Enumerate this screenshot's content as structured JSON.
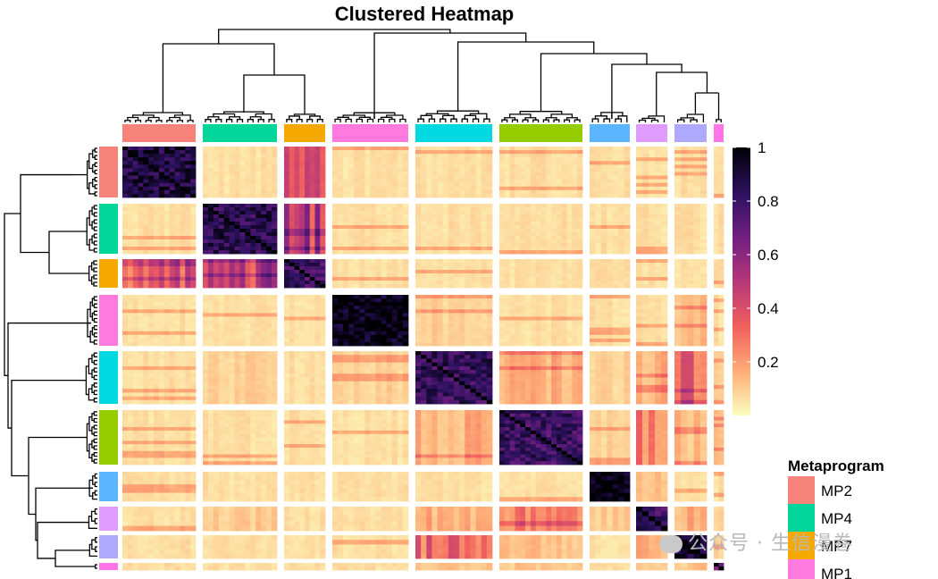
{
  "chart_data": {
    "type": "heatmap",
    "title": "Clustered Heatmap",
    "colorbar": {
      "min": 0,
      "max": 1,
      "ticks": [
        1,
        0.8,
        0.6,
        0.4,
        0.2
      ],
      "tick_labels": [
        "1",
        "0.8",
        "0.6",
        "0.4",
        "0.2"
      ],
      "colors": [
        "#fcfdbf",
        "#feb078",
        "#f1605d",
        "#b73779",
        "#721f81",
        "#2c115f",
        "#000004"
      ]
    },
    "legend": {
      "title": "Metaprogram",
      "placement": "bottom-right",
      "entries": [
        {
          "label": "MP2",
          "color": "#F8837B"
        },
        {
          "label": "MP4",
          "color": "#00D69A"
        },
        {
          "label": "MP7",
          "color": "#F5A800"
        },
        {
          "label": "MP1",
          "color": "#FF7ADF"
        }
      ]
    },
    "clusters": [
      {
        "id": 1,
        "color": "#F8837B",
        "size": 14
      },
      {
        "id": 2,
        "color": "#00D69A",
        "size": 14
      },
      {
        "id": 3,
        "color": "#F5A800",
        "size": 8
      },
      {
        "id": 4,
        "color": "#FF7ADF",
        "size": 14
      },
      {
        "id": 5,
        "color": "#00D9E1",
        "size": 14
      },
      {
        "id": 6,
        "color": "#95CC00",
        "size": 16
      },
      {
        "id": 7,
        "color": "#5CB5FF",
        "size": 7
      },
      {
        "id": 8,
        "color": "#E09BFF",
        "size": 5
      },
      {
        "id": 9,
        "color": "#AFA8FF",
        "size": 5
      },
      {
        "id": 10,
        "color": "#FF74E7",
        "size": 2
      }
    ],
    "within_cluster_similarity": [
      0.88,
      0.85,
      0.8,
      0.97,
      0.82,
      0.8,
      0.99,
      0.8,
      0.93,
      0.7
    ],
    "between_cluster_similarity": [
      [
        0,
        0.05,
        0.35,
        0.05,
        0.05,
        0.05,
        0.05,
        0.05,
        0.05,
        0.05
      ],
      [
        0.05,
        0,
        0.45,
        0.05,
        0.05,
        0.05,
        0.05,
        0.05,
        0.05,
        0.05
      ],
      [
        0.35,
        0.45,
        0,
        0.05,
        0.05,
        0.05,
        0.05,
        0.05,
        0.05,
        0.05
      ],
      [
        0.05,
        0.05,
        0.05,
        0,
        0.08,
        0.05,
        0.05,
        0.05,
        0.15,
        0.05
      ],
      [
        0.05,
        0.08,
        0.05,
        0.08,
        0,
        0.15,
        0.08,
        0.15,
        0.3,
        0.1
      ],
      [
        0.05,
        0.05,
        0.05,
        0.05,
        0.15,
        0,
        0.08,
        0.25,
        0.12,
        0.1
      ],
      [
        0.05,
        0.05,
        0.05,
        0.05,
        0.05,
        0.05,
        0,
        0.1,
        0.05,
        0.05
      ],
      [
        0.05,
        0.1,
        0.05,
        0.05,
        0.15,
        0.25,
        0.1,
        0,
        0.15,
        0.1
      ],
      [
        0.05,
        0.05,
        0.05,
        0.05,
        0.3,
        0.12,
        0.05,
        0.15,
        0,
        0.1
      ],
      [
        0.05,
        0.05,
        0.05,
        0.05,
        0.1,
        0.1,
        0.05,
        0.1,
        0.1,
        0
      ]
    ]
  },
  "watermark": "公众号 · 生信漫卷"
}
